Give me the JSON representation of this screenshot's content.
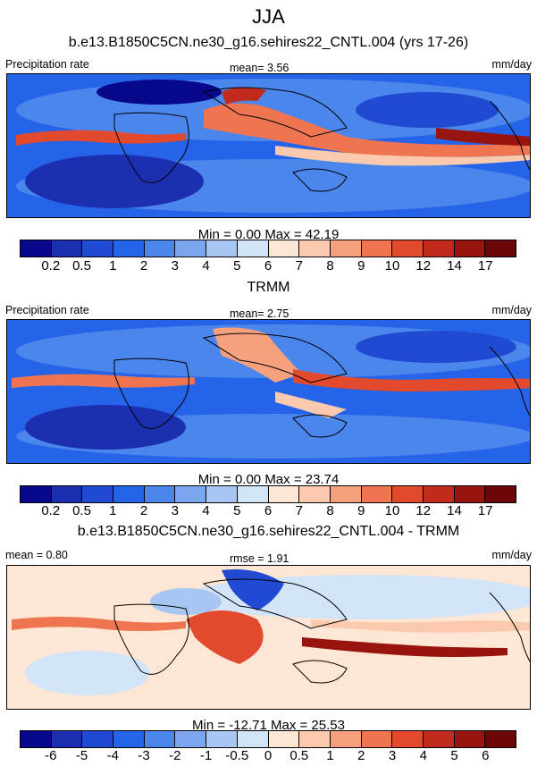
{
  "figure": {
    "title": "JJA"
  },
  "chart_data": [
    {
      "type": "heatmap",
      "title": "b.e13.B1850C5CN.ne30_g16.sehires22_CNTL.004 (yrs 17-26)",
      "left_label": "Precipitation rate",
      "center_label": "mean=   3.56",
      "right_label": "mm/day",
      "minmax_label": "Min =   0.00 Max =  42.19",
      "min": 0.0,
      "max": 42.19,
      "mean": 3.56,
      "colorbar_ticks": [
        "0.2",
        "0.5",
        "1",
        "2",
        "3",
        "4",
        "5",
        "6",
        "7",
        "8",
        "9",
        "10",
        "12",
        "14",
        "17"
      ]
    },
    {
      "type": "heatmap",
      "title": "TRMM",
      "left_label": "Precipitation rate",
      "center_label": "mean=   2.75",
      "right_label": "mm/day",
      "minmax_label": "Min =   0.00 Max =  23.74",
      "min": 0.0,
      "max": 23.74,
      "mean": 2.75,
      "colorbar_ticks": [
        "0.2",
        "0.5",
        "1",
        "2",
        "3",
        "4",
        "5",
        "6",
        "7",
        "8",
        "9",
        "10",
        "12",
        "14",
        "17"
      ]
    },
    {
      "type": "heatmap",
      "title": "b.e13.B1850C5CN.ne30_g16.sehires22_CNTL.004 - TRMM",
      "left_label": "mean =   0.80",
      "center_label": "rmse =   1.91",
      "right_label": "mm/day",
      "minmax_label": "Min = -12.71 Max =  25.53",
      "min": -12.71,
      "max": 25.53,
      "mean": 0.8,
      "rmse": 1.91,
      "colorbar_ticks": [
        "-6",
        "-5",
        "-4",
        "-3",
        "-2",
        "-1",
        "-0.5",
        "0",
        "0.5",
        "1",
        "2",
        "3",
        "4",
        "5",
        "6"
      ]
    }
  ],
  "colors": {
    "precip_scale": [
      "#08088c",
      "#1c2fb0",
      "#1f4ad1",
      "#2563e8",
      "#4a86ec",
      "#7aa6ee",
      "#a8c6f2",
      "#d2e4f7",
      "#fde6d3",
      "#fbc9ad",
      "#f6a07d",
      "#ef7551",
      "#e3492d",
      "#c22a1d",
      "#98140f",
      "#6d0707"
    ],
    "diff_scale": [
      "#08088c",
      "#1c2fb0",
      "#1f4ad1",
      "#2563e8",
      "#4a86ec",
      "#7aa6ee",
      "#a8c6f2",
      "#d2e4f7",
      "#fde6d3",
      "#fbc9ad",
      "#f6a07d",
      "#ef7551",
      "#e3492d",
      "#c22a1d",
      "#98140f",
      "#6d0707"
    ]
  }
}
